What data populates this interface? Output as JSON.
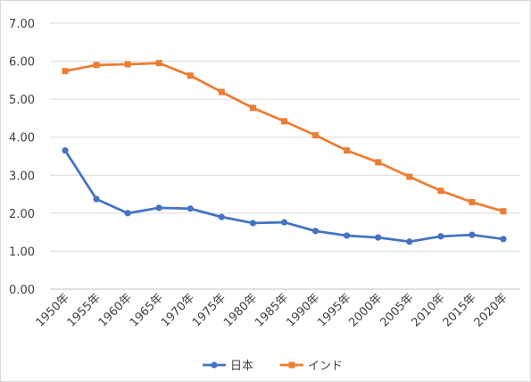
{
  "chart_data": {
    "type": "line",
    "categories": [
      "1950年",
      "1955年",
      "1960年",
      "1965年",
      "1970年",
      "1975年",
      "1980年",
      "1985年",
      "1990年",
      "1995年",
      "2000年",
      "2005年",
      "2010年",
      "2015年",
      "2020年"
    ],
    "y_ticks": [
      "0.00",
      "1.00",
      "2.00",
      "3.00",
      "4.00",
      "5.00",
      "6.00",
      "7.00"
    ],
    "ylim": [
      0,
      7
    ],
    "grid": true,
    "legend_position": "bottom",
    "series": [
      {
        "name": "日本",
        "color": "#4472C4",
        "marker": "circle",
        "values": [
          3.65,
          2.37,
          2.0,
          2.14,
          2.12,
          1.9,
          1.74,
          1.76,
          1.53,
          1.41,
          1.36,
          1.25,
          1.39,
          1.43,
          1.32
        ]
      },
      {
        "name": "インド",
        "color": "#ED7D31",
        "marker": "square",
        "values": [
          5.74,
          5.9,
          5.92,
          5.95,
          5.62,
          5.19,
          4.77,
          4.42,
          4.05,
          3.65,
          3.34,
          2.96,
          2.59,
          2.29,
          2.05
        ]
      }
    ]
  }
}
